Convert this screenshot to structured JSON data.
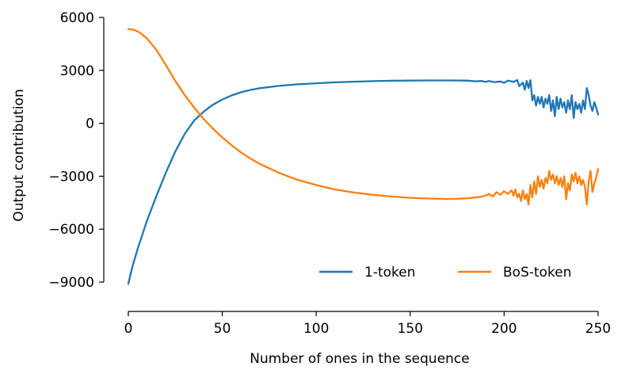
{
  "chart_data": {
    "type": "line",
    "title": "",
    "xlabel": "Number of ones in the sequence",
    "ylabel": "Output contribution",
    "xlim": [
      0,
      250
    ],
    "ylim": [
      -10500,
      6000
    ],
    "x_ticks": [
      0,
      50,
      100,
      150,
      200,
      250
    ],
    "x_tick_labels": [
      "0",
      "50",
      "100",
      "150",
      "200",
      "250"
    ],
    "y_ticks": [
      6000,
      3000,
      0,
      -3000,
      -6000,
      -9000
    ],
    "y_tick_labels": [
      "6000",
      "3000",
      "0",
      "−3000",
      "−6000",
      "−9000"
    ],
    "grid": false,
    "legend_position": "lower-right",
    "series": [
      {
        "name": "1-token",
        "color": "#1f77b4",
        "points": [
          [
            0,
            -9100
          ],
          [
            2,
            -8200
          ],
          [
            5,
            -7100
          ],
          [
            10,
            -5500
          ],
          [
            15,
            -4100
          ],
          [
            20,
            -2800
          ],
          [
            25,
            -1600
          ],
          [
            30,
            -600
          ],
          [
            35,
            150
          ],
          [
            40,
            650
          ],
          [
            45,
            1050
          ],
          [
            50,
            1350
          ],
          [
            55,
            1580
          ],
          [
            60,
            1760
          ],
          [
            65,
            1890
          ],
          [
            70,
            1990
          ],
          [
            80,
            2120
          ],
          [
            90,
            2210
          ],
          [
            100,
            2270
          ],
          [
            110,
            2320
          ],
          [
            120,
            2360
          ],
          [
            130,
            2390
          ],
          [
            140,
            2410
          ],
          [
            150,
            2420
          ],
          [
            160,
            2430
          ],
          [
            170,
            2430
          ],
          [
            180,
            2420
          ],
          [
            185,
            2380
          ],
          [
            188,
            2400
          ],
          [
            190,
            2350
          ],
          [
            192,
            2400
          ],
          [
            195,
            2330
          ],
          [
            198,
            2370
          ],
          [
            200,
            2300
          ],
          [
            202,
            2420
          ],
          [
            205,
            2350
          ],
          [
            207,
            2450
          ],
          [
            208,
            2100
          ],
          [
            210,
            2300
          ],
          [
            211,
            1900
          ],
          [
            212,
            2400
          ],
          [
            213,
            2000
          ],
          [
            214,
            2450
          ],
          [
            215,
            1300
          ],
          [
            216,
            1600
          ],
          [
            217,
            1000
          ],
          [
            218,
            1500
          ],
          [
            219,
            1100
          ],
          [
            220,
            1500
          ],
          [
            221,
            900
          ],
          [
            222,
            1400
          ],
          [
            223,
            1100
          ],
          [
            224,
            1600
          ],
          [
            225,
            700
          ],
          [
            226,
            1300
          ],
          [
            227,
            400
          ],
          [
            228,
            1500
          ],
          [
            229,
            800
          ],
          [
            230,
            1400
          ],
          [
            231,
            900
          ],
          [
            232,
            1200
          ],
          [
            233,
            600
          ],
          [
            234,
            1300
          ],
          [
            235,
            800
          ],
          [
            236,
            1600
          ],
          [
            237,
            300
          ],
          [
            238,
            1200
          ],
          [
            239,
            800
          ],
          [
            240,
            1100
          ],
          [
            241,
            600
          ],
          [
            242,
            1300
          ],
          [
            243,
            800
          ],
          [
            244,
            2000
          ],
          [
            245,
            1600
          ],
          [
            246,
            1000
          ],
          [
            247,
            700
          ],
          [
            248,
            1200
          ],
          [
            249,
            900
          ],
          [
            250,
            500
          ]
        ]
      },
      {
        "name": "BoS-token",
        "color": "#ff7f0e",
        "points": [
          [
            0,
            5350
          ],
          [
            3,
            5300
          ],
          [
            6,
            5150
          ],
          [
            10,
            4800
          ],
          [
            15,
            4150
          ],
          [
            20,
            3300
          ],
          [
            25,
            2400
          ],
          [
            30,
            1600
          ],
          [
            35,
            900
          ],
          [
            40,
            250
          ],
          [
            45,
            -300
          ],
          [
            50,
            -800
          ],
          [
            55,
            -1250
          ],
          [
            60,
            -1650
          ],
          [
            65,
            -2000
          ],
          [
            70,
            -2300
          ],
          [
            80,
            -2800
          ],
          [
            90,
            -3200
          ],
          [
            100,
            -3500
          ],
          [
            110,
            -3750
          ],
          [
            120,
            -3920
          ],
          [
            130,
            -4050
          ],
          [
            140,
            -4150
          ],
          [
            150,
            -4220
          ],
          [
            160,
            -4260
          ],
          [
            170,
            -4290
          ],
          [
            175,
            -4280
          ],
          [
            180,
            -4250
          ],
          [
            185,
            -4200
          ],
          [
            188,
            -4150
          ],
          [
            190,
            -4100
          ],
          [
            192,
            -4000
          ],
          [
            194,
            -4150
          ],
          [
            196,
            -3900
          ],
          [
            198,
            -4050
          ],
          [
            200,
            -3850
          ],
          [
            202,
            -4000
          ],
          [
            204,
            -3800
          ],
          [
            205,
            -4100
          ],
          [
            206,
            -3750
          ],
          [
            207,
            -4200
          ],
          [
            208,
            -4000
          ],
          [
            209,
            -4400
          ],
          [
            210,
            -3800
          ],
          [
            211,
            -4300
          ],
          [
            212,
            -4000
          ],
          [
            213,
            -4600
          ],
          [
            214,
            -3500
          ],
          [
            215,
            -4200
          ],
          [
            216,
            -3300
          ],
          [
            217,
            -4000
          ],
          [
            218,
            -3000
          ],
          [
            219,
            -3600
          ],
          [
            220,
            -3200
          ],
          [
            221,
            -3700
          ],
          [
            222,
            -3100
          ],
          [
            223,
            -3400
          ],
          [
            224,
            -2700
          ],
          [
            225,
            -3200
          ],
          [
            226,
            -2900
          ],
          [
            227,
            -3400
          ],
          [
            228,
            -3000
          ],
          [
            229,
            -3500
          ],
          [
            230,
            -3100
          ],
          [
            231,
            -3600
          ],
          [
            232,
            -3000
          ],
          [
            233,
            -4300
          ],
          [
            234,
            -3400
          ],
          [
            235,
            -3800
          ],
          [
            236,
            -2900
          ],
          [
            237,
            -3300
          ],
          [
            238,
            -2800
          ],
          [
            239,
            -3400
          ],
          [
            240,
            -3000
          ],
          [
            241,
            -3500
          ],
          [
            242,
            -3200
          ],
          [
            243,
            -3600
          ],
          [
            244,
            -4600
          ],
          [
            245,
            -3300
          ],
          [
            246,
            -2700
          ],
          [
            247,
            -3900
          ],
          [
            248,
            -3400
          ],
          [
            249,
            -3100
          ],
          [
            250,
            -2600
          ]
        ]
      }
    ]
  }
}
